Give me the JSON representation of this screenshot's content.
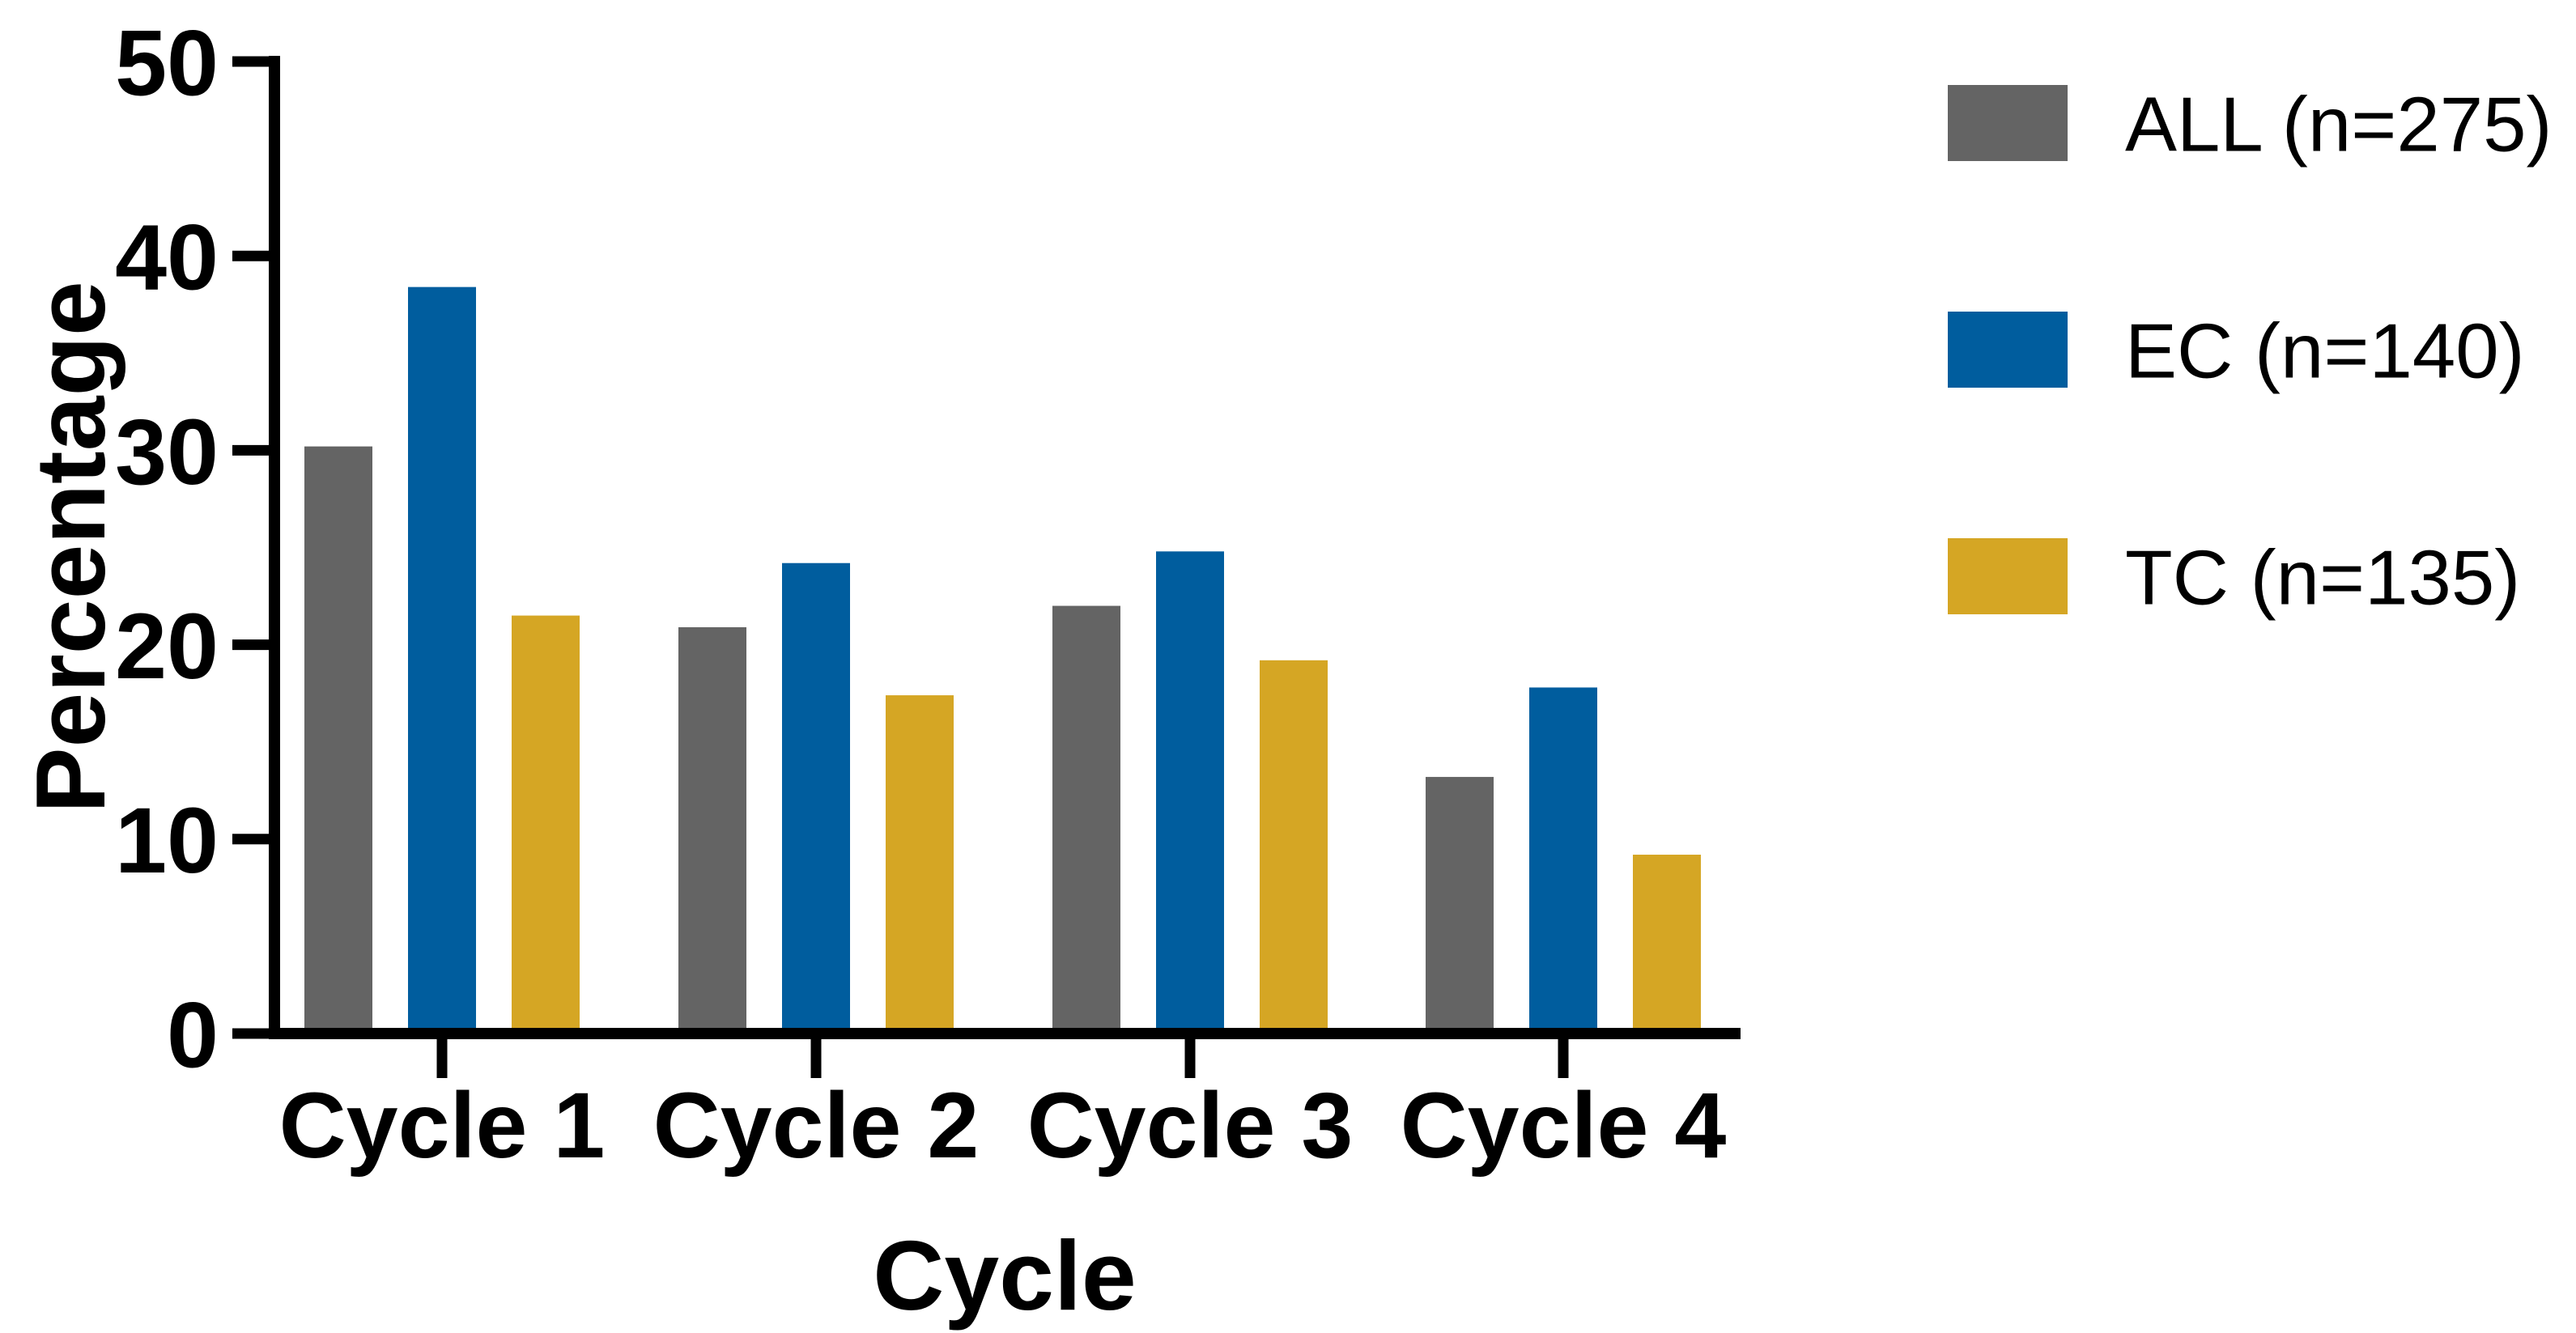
{
  "chart_data": {
    "type": "bar",
    "title": "",
    "xlabel": "Cycle",
    "ylabel": "Percentage",
    "ylim": [
      0,
      50
    ],
    "yticks": [
      0,
      10,
      20,
      30,
      40,
      50
    ],
    "categories": [
      "Cycle 1",
      "Cycle 2",
      "Cycle 3",
      "Cycle 4"
    ],
    "series": [
      {
        "name": "ALL (n=275)",
        "color": "#646464",
        "values": [
          30.2,
          20.9,
          22.0,
          13.2
        ]
      },
      {
        "name": "EC (n=140)",
        "color": "#005D9E",
        "values": [
          38.4,
          24.2,
          24.8,
          17.8
        ]
      },
      {
        "name": "TC (n=135)",
        "color": "#D5A624",
        "values": [
          21.5,
          17.4,
          19.2,
          9.2
        ]
      }
    ],
    "legend_position": "right",
    "grid": false,
    "axis_color": "#000000",
    "background": "#FFFFFF"
  }
}
